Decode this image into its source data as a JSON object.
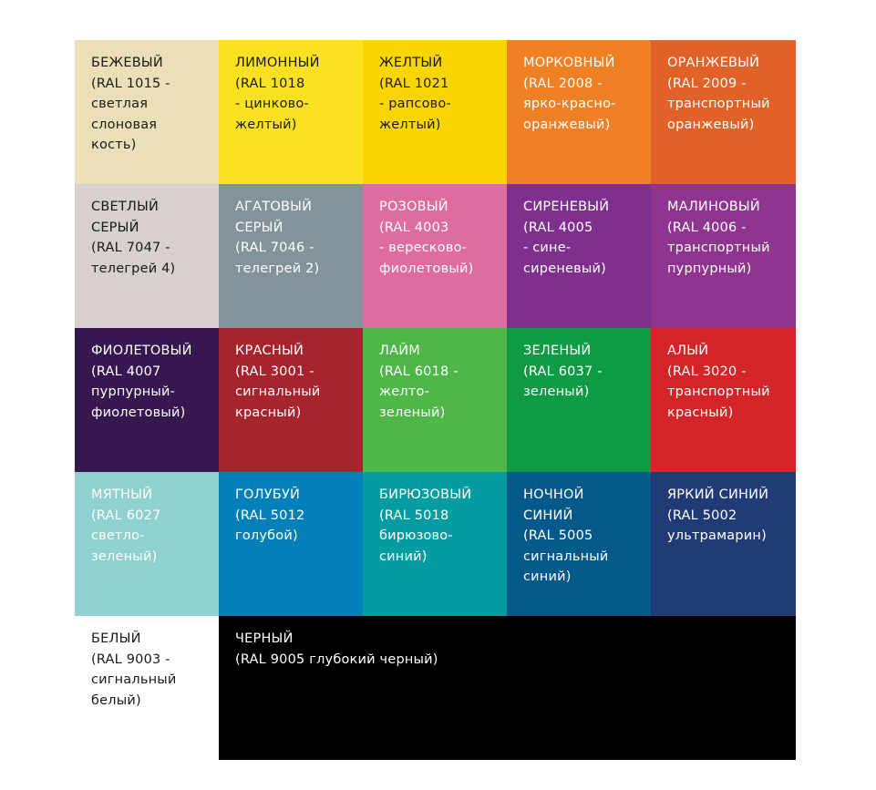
{
  "swatches": [
    {
      "name": "БЕЖЕВЫЙ",
      "desc": "(RAL 1015 -\nсветлая\nслоновая\nкость)",
      "bg": "#ebdfb7",
      "fg": "#1a1a1a"
    },
    {
      "name": "ЛИМОННЫЙ",
      "desc": "(RAL 1018\n- цинково-\nжелтый)",
      "bg": "#fae223",
      "fg": "#1a1a1a"
    },
    {
      "name": "ЖЕЛТЫЙ",
      "desc": "(RAL 1021\n- рапсово-\nжелтый)",
      "bg": "#f9d503",
      "fg": "#1a1a1a"
    },
    {
      "name": "МОРКОВНЫЙ",
      "desc": "(RAL 2008 -\nярко-красно-\nоранжевый)",
      "bg": "#ef8023",
      "fg": "#ffffff"
    },
    {
      "name": "ОРАНЖЕВЫЙ",
      "desc": "(RAL 2009 -\nтранспортный\nоранжевый)",
      "bg": "#e06228",
      "fg": "#ffffff"
    },
    {
      "name": "СВЕТЛЫЙ\nСЕРЫЙ",
      "desc": "(RAL 7047 -\nтелегрей 4)",
      "bg": "#d8d0ce",
      "fg": "#1a1a1a"
    },
    {
      "name": "АГАТОВЫЙ\nСЕРЫЙ",
      "desc": "(RAL 7046 -\nтелегрей 2)",
      "bg": "#83939a",
      "fg": "#ffffff"
    },
    {
      "name": "РОЗОВЫЙ",
      "desc": "(RAL 4003\n- вересково-\nфиолетовый)",
      "bg": "#de6c9f",
      "fg": "#ffffff"
    },
    {
      "name": "СИРЕНЕВЫЙ",
      "desc": "(RAL 4005\n- сине-\nсиреневый)",
      "bg": "#7f2f8e",
      "fg": "#ffffff"
    },
    {
      "name": "МАЛИНОВЫЙ",
      "desc": "(RAL 4006 -\nтранспортный\nпурпурный)",
      "bg": "#8f358f",
      "fg": "#ffffff"
    },
    {
      "name": "ФИОЛЕТОВЫЙ",
      "desc": "(RAL 4007\nпурпурный-\nфиолетовый)",
      "bg": "#371750",
      "fg": "#ffffff"
    },
    {
      "name": "КРАСНЫЙ",
      "desc": "(RAL 3001 -\nсигнальный\nкрасный)",
      "bg": "#a7232d",
      "fg": "#ffffff"
    },
    {
      "name": "ЛАЙМ",
      "desc": "(RAL 6018 -\nжелто-\nзеленый)",
      "bg": "#4eb748",
      "fg": "#ffffff"
    },
    {
      "name": "ЗЕЛЕНЫЙ",
      "desc": "(RAL 6037 -\nзеленый)",
      "bg": "#0f9a44",
      "fg": "#ffffff"
    },
    {
      "name": "АЛЫЙ",
      "desc": "(RAL 3020 -\nтранспортный\nкрасный)",
      "bg": "#d32427",
      "fg": "#ffffff"
    },
    {
      "name": "МЯТНЫЙ",
      "desc": "(RAL 6027\nсветло-\nзеленый)",
      "bg": "#8fd1cf",
      "fg": "#ffffff"
    },
    {
      "name": "ГОЛУБУЙ",
      "desc": "(RAL 5012\nголубой)",
      "bg": "#0380b9",
      "fg": "#ffffff"
    },
    {
      "name": "БИРЮЗОВЫЙ",
      "desc": "(RAL 5018\nбирюзово-\nсиний)",
      "bg": "#039ca0",
      "fg": "#ffffff"
    },
    {
      "name": "НОЧНОЙ\nСИНИЙ",
      "desc": "(RAL 5005\nсигнальный\nсиний)",
      "bg": "#035989",
      "fg": "#ffffff"
    },
    {
      "name": "ЯРКИЙ СИНИЙ",
      "desc": "(RAL 5002\nультрамарин)",
      "bg": "#213b77",
      "fg": "#ffffff"
    },
    {
      "name": "БЕЛЫЙ",
      "desc": "(RAL 9003 -\nсигнальный\nбелый)",
      "bg": "#ffffff",
      "fg": "#1a1a1a"
    },
    {
      "name": "ЧЕРНЫЙ",
      "desc": "(RAL 9005 глубокий черный)",
      "bg": "#000000",
      "fg": "#ffffff",
      "wide": true
    }
  ]
}
